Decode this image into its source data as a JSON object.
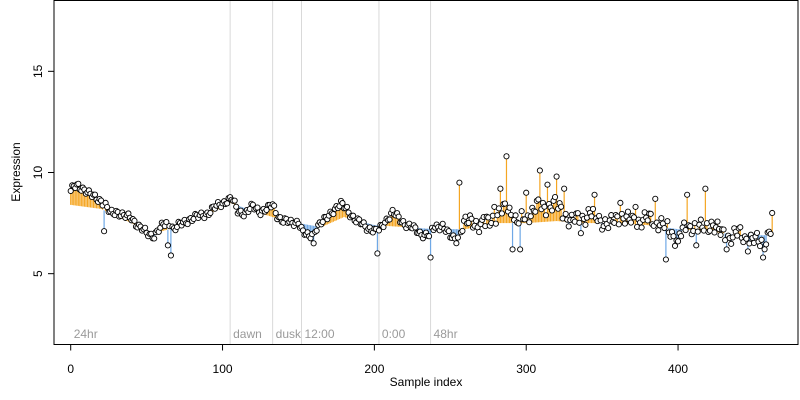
{
  "chart_data": {
    "type": "scatter",
    "title": "",
    "xlabel": "Sample index",
    "ylabel": "Expression",
    "xlim": [
      -11,
      479
    ],
    "ylim": [
      1.5,
      18.5
    ],
    "x_ticks": [
      0,
      100,
      200,
      300,
      400
    ],
    "y_ticks": [
      5,
      10,
      15
    ],
    "grid": false,
    "legend": "none",
    "colors": {
      "point_fill": "#ffffff",
      "point_stroke": "#000000",
      "above_baseline": "#f5a623",
      "below_baseline": "#6fa8e6",
      "phase_line": "#d9d9d9",
      "phase_label": "#9a9a9a"
    },
    "phase_markers": [
      {
        "x": 0,
        "label": "24hr",
        "line": false
      },
      {
        "x": 105,
        "label": "dawn",
        "line": true
      },
      {
        "x": 133,
        "label": "dusk",
        "line": true
      },
      {
        "x": 152,
        "label": "12:00",
        "line": true
      },
      {
        "x": 203,
        "label": "0:00",
        "line": true
      },
      {
        "x": 237,
        "label": "48hr",
        "line": true
      }
    ],
    "baseline_anchors": [
      [
        0,
        8.4
      ],
      [
        20,
        8.2
      ],
      [
        40,
        7.5
      ],
      [
        55,
        7.0
      ],
      [
        70,
        7.3
      ],
      [
        90,
        7.9
      ],
      [
        105,
        8.5
      ],
      [
        120,
        8.1
      ],
      [
        133,
        7.8
      ],
      [
        150,
        7.5
      ],
      [
        165,
        7.3
      ],
      [
        180,
        7.8
      ],
      [
        200,
        7.4
      ],
      [
        220,
        7.3
      ],
      [
        240,
        7.2
      ],
      [
        260,
        7.2
      ],
      [
        280,
        7.5
      ],
      [
        300,
        7.5
      ],
      [
        320,
        7.6
      ],
      [
        340,
        7.5
      ],
      [
        360,
        7.5
      ],
      [
        380,
        7.4
      ],
      [
        400,
        7.2
      ],
      [
        420,
        7.1
      ],
      [
        440,
        6.9
      ],
      [
        463,
        6.9
      ]
    ],
    "point_count": 463,
    "series_anchors": [
      [
        0,
        9.0
      ],
      [
        2,
        9.3
      ],
      [
        5,
        9.4
      ],
      [
        8,
        9.2
      ],
      [
        12,
        8.9
      ],
      [
        17,
        8.8
      ],
      [
        20,
        8.6
      ],
      [
        23,
        8.3
      ],
      [
        26,
        8.0
      ],
      [
        30,
        8.1
      ],
      [
        35,
        7.8
      ],
      [
        40,
        7.8
      ],
      [
        45,
        7.3
      ],
      [
        50,
        7.0
      ],
      [
        55,
        6.9
      ],
      [
        60,
        7.3
      ],
      [
        64,
        7.6
      ],
      [
        68,
        7.2
      ],
      [
        72,
        7.4
      ],
      [
        78,
        7.7
      ],
      [
        84,
        7.8
      ],
      [
        90,
        8.0
      ],
      [
        96,
        8.3
      ],
      [
        102,
        8.6
      ],
      [
        106,
        8.7
      ],
      [
        110,
        8.1
      ],
      [
        115,
        8.0
      ],
      [
        120,
        8.3
      ],
      [
        125,
        8.1
      ],
      [
        130,
        8.2
      ],
      [
        133,
        8.4
      ],
      [
        136,
        7.9
      ],
      [
        140,
        7.6
      ],
      [
        145,
        7.5
      ],
      [
        150,
        7.6
      ],
      [
        153,
        7.0
      ],
      [
        157,
        6.8
      ],
      [
        162,
        7.3
      ],
      [
        167,
        7.6
      ],
      [
        172,
        8.1
      ],
      [
        178,
        8.4
      ],
      [
        182,
        8.2
      ],
      [
        188,
        7.6
      ],
      [
        193,
        7.4
      ],
      [
        198,
        7.2
      ],
      [
        202,
        7.0
      ],
      [
        207,
        7.6
      ],
      [
        212,
        8.0
      ],
      [
        218,
        7.6
      ],
      [
        224,
        7.3
      ],
      [
        230,
        7.0
      ],
      [
        236,
        6.9
      ],
      [
        240,
        7.3
      ],
      [
        245,
        7.4
      ],
      [
        250,
        6.8
      ],
      [
        254,
        6.7
      ],
      [
        258,
        7.4
      ],
      [
        265,
        7.6
      ],
      [
        272,
        7.3
      ],
      [
        280,
        7.9
      ],
      [
        288,
        8.2
      ],
      [
        294,
        7.6
      ],
      [
        300,
        7.8
      ],
      [
        306,
        8.3
      ],
      [
        312,
        8.2
      ],
      [
        318,
        8.5
      ],
      [
        324,
        8.0
      ],
      [
        330,
        7.6
      ],
      [
        336,
        7.7
      ],
      [
        342,
        8.0
      ],
      [
        348,
        7.7
      ],
      [
        355,
        7.4
      ],
      [
        362,
        7.9
      ],
      [
        368,
        7.6
      ],
      [
        374,
        7.6
      ],
      [
        380,
        7.7
      ],
      [
        386,
        7.6
      ],
      [
        392,
        7.3
      ],
      [
        398,
        6.8
      ],
      [
        404,
        7.1
      ],
      [
        410,
        7.4
      ],
      [
        416,
        7.2
      ],
      [
        422,
        7.5
      ],
      [
        428,
        7.0
      ],
      [
        434,
        6.8
      ],
      [
        440,
        7.0
      ],
      [
        446,
        6.7
      ],
      [
        452,
        6.6
      ],
      [
        457,
        6.6
      ],
      [
        463,
        7.4
      ]
    ],
    "notable_points": [
      [
        22,
        7.1
      ],
      [
        64,
        6.4
      ],
      [
        66,
        5.9
      ],
      [
        160,
        6.5
      ],
      [
        202,
        6.0
      ],
      [
        237,
        5.8
      ],
      [
        256,
        9.5
      ],
      [
        272,
        7.8
      ],
      [
        279,
        8.3
      ],
      [
        283,
        9.2
      ],
      [
        287,
        10.8
      ],
      [
        291,
        6.2
      ],
      [
        296,
        6.2
      ],
      [
        300,
        9.0
      ],
      [
        307,
        8.6
      ],
      [
        309,
        10.1
      ],
      [
        314,
        9.4
      ],
      [
        320,
        9.8
      ],
      [
        325,
        9.2
      ],
      [
        336,
        7.0
      ],
      [
        345,
        8.9
      ],
      [
        362,
        8.5
      ],
      [
        372,
        8.3
      ],
      [
        385,
        8.7
      ],
      [
        392,
        5.7
      ],
      [
        400,
        6.6
      ],
      [
        406,
        8.9
      ],
      [
        412,
        6.4
      ],
      [
        418,
        9.2
      ],
      [
        432,
        6.2
      ],
      [
        446,
        6.1
      ],
      [
        456,
        5.8
      ],
      [
        462,
        8.0
      ]
    ]
  }
}
